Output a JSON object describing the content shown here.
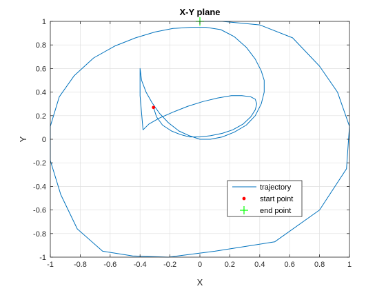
{
  "chart_data": {
    "type": "line",
    "title": "X-Y plane",
    "xlabel": "X",
    "ylabel": "Y",
    "xlim": [
      -1,
      1
    ],
    "ylim": [
      -1,
      1
    ],
    "xticks": [
      -1,
      -0.8,
      -0.6,
      -0.4,
      -0.2,
      0,
      0.2,
      0.4,
      0.6,
      0.8,
      1
    ],
    "xtick_labels": [
      "-1",
      "-0.8",
      "-0.6",
      "-0.4",
      "-0.2",
      "0",
      "0.2",
      "0.4",
      "0.6",
      "0.8",
      "1"
    ],
    "yticks": [
      -1,
      -0.8,
      -0.6,
      -0.4,
      -0.2,
      0,
      0.2,
      0.4,
      0.6,
      0.8,
      1
    ],
    "ytick_labels": [
      "-1",
      "-0.8",
      "-0.6",
      "-0.4",
      "-0.2",
      "0",
      "0.2",
      "0.4",
      "0.6",
      "0.8",
      "1"
    ],
    "grid": true,
    "legend_position": "bottom-right",
    "series": [
      {
        "name": "trajectory",
        "kind": "line",
        "color": "#0072bd",
        "x": [
          -0.31,
          -0.29,
          -0.25,
          -0.19,
          -0.13,
          -0.07,
          0.0,
          0.07,
          0.15,
          0.22,
          0.29,
          0.34,
          0.37,
          0.38,
          0.37,
          0.34,
          0.28,
          0.21,
          0.12,
          0.02,
          -0.08,
          -0.18,
          -0.27,
          -0.34,
          -0.38,
          -0.4,
          -0.4,
          -0.39,
          -0.36,
          -0.32,
          -0.27,
          -0.21,
          -0.14,
          -0.07,
          0.0,
          0.07,
          0.15,
          0.23,
          0.31,
          0.37,
          0.41,
          0.43,
          0.43,
          0.41,
          0.37,
          0.31,
          0.23,
          0.14,
          0.04,
          -0.06,
          -0.18,
          -0.3,
          -0.43,
          -0.57,
          -0.71,
          -0.84,
          -0.94,
          -1.0,
          -1.0,
          -0.93,
          -0.82,
          -0.65,
          -0.45,
          -0.21,
          0.1,
          0.5,
          0.8,
          0.98,
          1.0,
          0.92,
          0.8,
          0.62,
          0.4,
          0.15,
          0.0
        ],
        "y": [
          0.27,
          0.19,
          0.12,
          0.07,
          0.04,
          0.02,
          0.02,
          0.03,
          0.05,
          0.08,
          0.13,
          0.19,
          0.25,
          0.3,
          0.34,
          0.36,
          0.37,
          0.37,
          0.35,
          0.32,
          0.28,
          0.23,
          0.18,
          0.13,
          0.08,
          0.37,
          0.6,
          0.5,
          0.4,
          0.31,
          0.22,
          0.14,
          0.07,
          0.03,
          0.0,
          0.0,
          0.02,
          0.06,
          0.12,
          0.2,
          0.3,
          0.4,
          0.5,
          0.58,
          0.68,
          0.78,
          0.87,
          0.93,
          0.95,
          0.95,
          0.94,
          0.91,
          0.86,
          0.79,
          0.69,
          0.54,
          0.36,
          0.11,
          -0.18,
          -0.47,
          -0.76,
          -0.95,
          -0.99,
          -1.0,
          -0.95,
          -0.87,
          -0.6,
          -0.25,
          0.11,
          0.4,
          0.62,
          0.86,
          0.97,
          1.0,
          1.0
        ]
      },
      {
        "name": "start point",
        "kind": "marker-dot",
        "color": "#ff0000",
        "x": [
          -0.31
        ],
        "y": [
          0.27
        ]
      },
      {
        "name": "end point",
        "kind": "marker-plus",
        "color": "#00ff00",
        "x": [
          0.0
        ],
        "y": [
          1.0
        ]
      }
    ]
  }
}
